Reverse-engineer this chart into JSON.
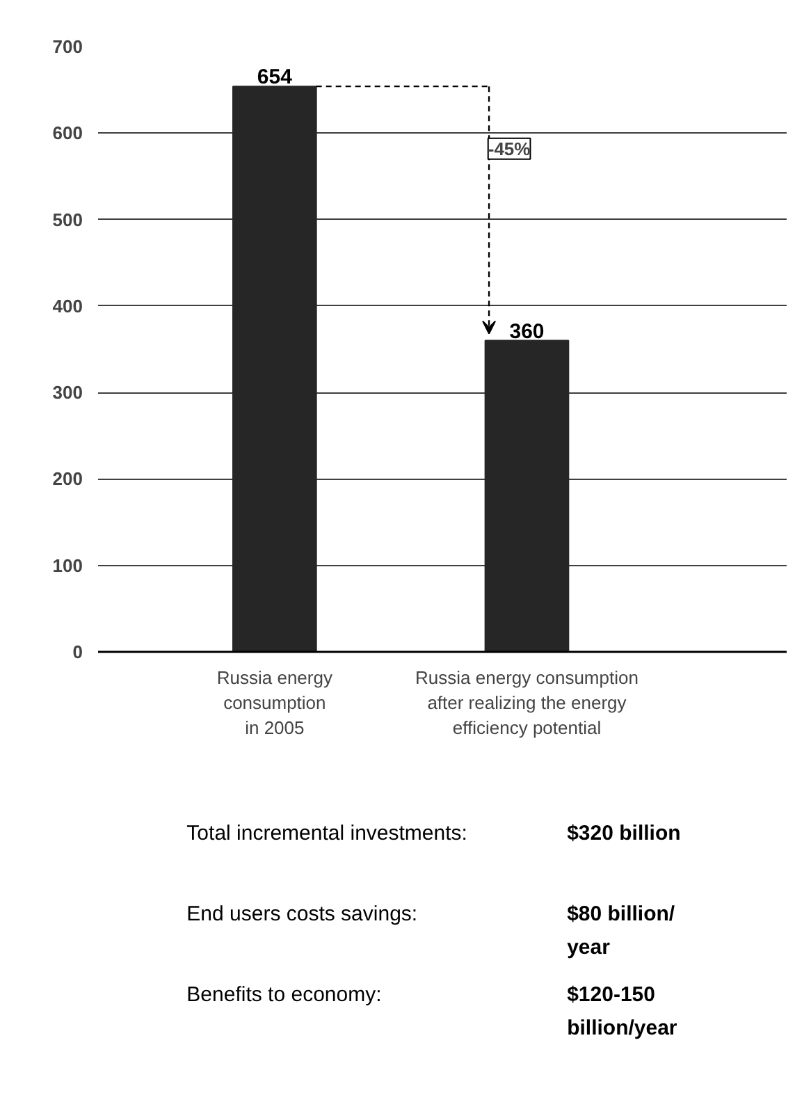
{
  "chart_data": {
    "type": "bar",
    "categories": [
      "Russia energy consumption in 2005",
      "Russia energy consumption after realizing the energy efficiency potential"
    ],
    "values": [
      654,
      360
    ],
    "color": "#262626",
    "ylim": [
      0,
      700
    ],
    "yticks": [
      0,
      100,
      200,
      300,
      400,
      500,
      600,
      700
    ],
    "grid": "y",
    "data_labels": true,
    "annotations": [
      "-45%",
      "Total incremental investments:",
      "$320 billion",
      "End users costs savings:",
      "$80 billion/ year",
      "Benefits to economy:",
      "$120-150 billion/year"
    ]
  }
}
